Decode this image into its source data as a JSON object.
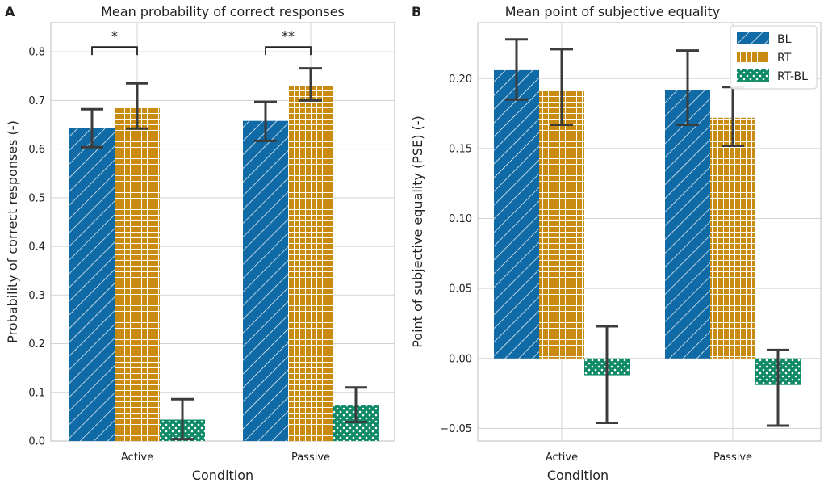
{
  "chart_data": [
    {
      "panel": "A",
      "type": "bar",
      "title": "Mean probability of correct responses",
      "xlabel": "Condition",
      "ylabel": "Probability of correct responses (-)",
      "categories": [
        "Active",
        "Passive"
      ],
      "ylim": [
        0.0,
        0.86
      ],
      "yticks": [
        0.0,
        0.1,
        0.2,
        0.3,
        0.4,
        0.5,
        0.6,
        0.7,
        0.8
      ],
      "ytick_labels": [
        "0.0",
        "0.1",
        "0.2",
        "0.3",
        "0.4",
        "0.5",
        "0.6",
        "0.7",
        "0.8"
      ],
      "grid": true,
      "series": [
        {
          "name": "BL",
          "values": [
            0.643,
            0.658
          ],
          "err_low": [
            0.604,
            0.617
          ],
          "err_high": [
            0.682,
            0.697
          ]
        },
        {
          "name": "RT",
          "values": [
            0.686,
            0.73
          ],
          "err_low": [
            0.642,
            0.7
          ],
          "err_high": [
            0.735,
            0.766
          ]
        },
        {
          "name": "RT-BL",
          "values": [
            0.044,
            0.073
          ],
          "err_low": [
            0.004,
            0.039
          ],
          "err_high": [
            0.086,
            0.11
          ]
        }
      ],
      "annotations": [
        {
          "category": "Active",
          "label": "*",
          "between": [
            "BL",
            "RT"
          ],
          "y": 0.81
        },
        {
          "category": "Passive",
          "label": "**",
          "between": [
            "BL",
            "RT"
          ],
          "y": 0.81
        }
      ]
    },
    {
      "panel": "B",
      "type": "bar",
      "title": "Mean point of subjective equality",
      "xlabel": "Condition",
      "ylabel": "Point of subjective equality (PSE) (-)",
      "categories": [
        "Active",
        "Passive"
      ],
      "ylim": [
        -0.059,
        0.24
      ],
      "yticks": [
        -0.05,
        0.0,
        0.05,
        0.1,
        0.15,
        0.2
      ],
      "ytick_labels": [
        "−0.05",
        "0.00",
        "0.05",
        "0.10",
        "0.15",
        "0.20"
      ],
      "grid": true,
      "legend": {
        "position": "top-right",
        "entries": [
          "BL",
          "RT",
          "RT-BL"
        ]
      },
      "series": [
        {
          "name": "BL",
          "values": [
            0.206,
            0.192
          ],
          "err_low": [
            0.185,
            0.167
          ],
          "err_high": [
            0.228,
            0.22
          ]
        },
        {
          "name": "RT",
          "values": [
            0.192,
            0.172
          ],
          "err_low": [
            0.167,
            0.152
          ],
          "err_high": [
            0.221,
            0.194
          ]
        },
        {
          "name": "RT-BL",
          "values": [
            -0.012,
            -0.019
          ],
          "err_low": [
            -0.046,
            -0.048
          ],
          "err_high": [
            0.023,
            0.006
          ]
        }
      ]
    }
  ],
  "colors": {
    "BL": "#0f6aa6",
    "RT": "#c98a11",
    "RT-BL": "#0f8a67",
    "grid": "#d3d3d3",
    "frame": "#c8c8c8",
    "errorbar": "#3c3c3c"
  }
}
